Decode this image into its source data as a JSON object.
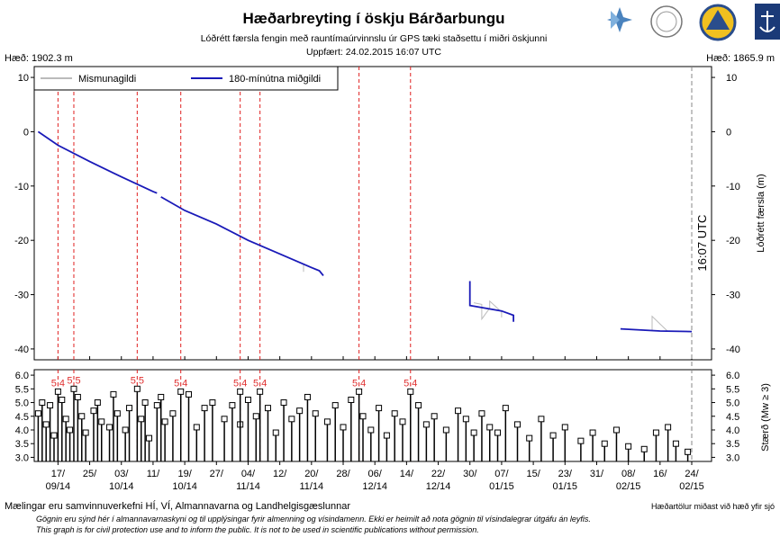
{
  "chart_data": {
    "type": "line",
    "title": "Hæðarbreyting í öskju Bárðarbungu",
    "subtitle": "Lóðrétt færsla fengin með rauntímaúrvinnslu úr GPS tæki staðsettu í miðri öskjunni",
    "updated": "Uppfært: 24.02.2015 16:07 UTC",
    "height_left": "Hæð: 1902.3 m",
    "height_right": "Hæð: 1865.9 m",
    "ylabel": "Lóðrétt færsla (m)",
    "now_label": "16:07 UTC",
    "now": "2015-02-24",
    "xlim": [
      "2014-09-11",
      "2015-03-01"
    ],
    "xticks": [
      {
        "value": "2014-09-17",
        "label": "17/\n09/14"
      },
      {
        "value": "2014-09-25",
        "label": "25/"
      },
      {
        "value": "2014-10-03",
        "label": "03/\n10/14"
      },
      {
        "value": "2014-10-11",
        "label": "11/"
      },
      {
        "value": "2014-10-19",
        "label": "19/\n10/14"
      },
      {
        "value": "2014-10-27",
        "label": "27/"
      },
      {
        "value": "2014-11-04",
        "label": "04/\n11/14"
      },
      {
        "value": "2014-11-12",
        "label": "12/"
      },
      {
        "value": "2014-11-20",
        "label": "20/\n11/14"
      },
      {
        "value": "2014-11-28",
        "label": "28/"
      },
      {
        "value": "2014-12-06",
        "label": "06/\n12/14"
      },
      {
        "value": "2014-12-14",
        "label": "14/"
      },
      {
        "value": "2014-12-22",
        "label": "22/\n12/14"
      },
      {
        "value": "2014-12-30",
        "label": "30/"
      },
      {
        "value": "2015-01-07",
        "label": "07/\n01/15"
      },
      {
        "value": "2015-01-15",
        "label": "15/"
      },
      {
        "value": "2015-01-23",
        "label": "23/\n01/15"
      },
      {
        "value": "2015-01-31",
        "label": "31/"
      },
      {
        "value": "2015-02-08",
        "label": "08/\n02/15"
      },
      {
        "value": "2015-02-16",
        "label": "16/"
      },
      {
        "value": "2015-02-24",
        "label": "24/\n02/15"
      }
    ],
    "ylim": [
      -42,
      12
    ],
    "yticks": [
      10,
      0,
      -10,
      -20,
      -30,
      -40
    ],
    "series": [
      {
        "name": "Mismunagildi",
        "color": "#bbbbbb",
        "x": [
          "2014-11-18",
          "2014-11-18",
          null,
          "2014-12-31",
          "2015-01-02",
          "2015-01-02",
          "2015-01-04",
          "2015-01-04",
          "2015-01-07",
          "2015-01-07",
          null,
          "2015-02-12",
          "2015-02-14",
          "2015-02-14",
          "2015-02-18"
        ],
        "values": [
          -24.4,
          -25.8,
          null,
          -31.5,
          -31.8,
          -34.5,
          -32.5,
          -31.2,
          -33.2,
          -34.2,
          null,
          -36.6,
          -36.6,
          -34.0,
          -36.8
        ]
      },
      {
        "name": "180-mínútna miðgildi",
        "color": "#1a1ab8",
        "x": [
          "2014-09-12",
          "2014-09-17",
          "2014-09-25",
          "2014-10-03",
          "2014-10-11",
          "2014-10-12",
          null,
          "2014-10-13",
          "2014-10-19",
          "2014-10-27",
          "2014-11-04",
          "2014-11-12",
          "2014-11-20",
          "2014-11-22",
          "2014-11-23",
          null,
          "2014-12-30",
          "2014-12-30",
          "2015-01-07",
          "2015-01-10",
          "2015-01-10",
          null,
          "2015-02-06",
          "2015-02-16",
          "2015-02-24"
        ],
        "values": [
          0,
          -2.5,
          -5.5,
          -8.3,
          -11,
          -11.3,
          null,
          -12,
          -14.5,
          -17,
          -20,
          -22.5,
          -25,
          -25.6,
          -26.5,
          null,
          -27.5,
          -32,
          -33,
          -33.8,
          -35,
          null,
          -36.3,
          -36.7,
          -36.8
        ]
      }
    ],
    "legend": "upper left",
    "events": [
      {
        "date": "2014-09-17",
        "magnitude": 5.4
      },
      {
        "date": "2014-09-21",
        "magnitude": 5.5
      },
      {
        "date": "2014-10-07",
        "magnitude": 5.5
      },
      {
        "date": "2014-10-18",
        "magnitude": 5.4
      },
      {
        "date": "2014-11-02",
        "magnitude": 5.4
      },
      {
        "date": "2014-11-07",
        "magnitude": 5.4
      },
      {
        "date": "2014-12-02",
        "magnitude": 5.4
      },
      {
        "date": "2014-12-15",
        "magnitude": 5.4
      }
    ],
    "quakes": {
      "ylabel": "Stærð (Mw ≥ 3)",
      "ylim": [
        2.85,
        6.2
      ],
      "yticks": [
        {
          "value": 6,
          "label": "6.0"
        },
        {
          "value": 5.5,
          "label": "5.5"
        },
        {
          "value": 5,
          "label": "5.0"
        },
        {
          "value": 4.5,
          "label": "4.5"
        },
        {
          "value": 4,
          "label": "4.0"
        },
        {
          "value": 3.5,
          "label": "3.5"
        },
        {
          "value": 3,
          "label": "3.0"
        }
      ],
      "dates": [
        "2014-09-12",
        "2014-09-13",
        "2014-09-14",
        "2014-09-15",
        "2014-09-16",
        "2014-09-18",
        "2014-09-19",
        "2014-09-20",
        "2014-09-22",
        "2014-09-23",
        "2014-09-24",
        "2014-09-26",
        "2014-09-27",
        "2014-09-28",
        "2014-09-30",
        "2014-10-01",
        "2014-10-02",
        "2014-10-04",
        "2014-10-05",
        "2014-10-08",
        "2014-10-09",
        "2014-10-10",
        "2014-10-12",
        "2014-10-13",
        "2014-10-14",
        "2014-10-16",
        "2014-10-20",
        "2014-10-22",
        "2014-10-24",
        "2014-10-26",
        "2014-10-29",
        "2014-10-31",
        "2014-11-02",
        "2014-11-04",
        "2014-11-06",
        "2014-11-09",
        "2014-11-11",
        "2014-11-13",
        "2014-11-15",
        "2014-11-17",
        "2014-11-19",
        "2014-11-21",
        "2014-11-24",
        "2014-11-26",
        "2014-11-28",
        "2014-11-30",
        "2014-12-03",
        "2014-12-05",
        "2014-12-07",
        "2014-12-09",
        "2014-12-11",
        "2014-12-13",
        "2014-12-17",
        "2014-12-19",
        "2014-12-21",
        "2014-12-24",
        "2014-12-27",
        "2014-12-29",
        "2014-12-31",
        "2015-01-02",
        "2015-01-04",
        "2015-01-06",
        "2015-01-08",
        "2015-01-11",
        "2015-01-14",
        "2015-01-17",
        "2015-01-20",
        "2015-01-23",
        "2015-01-27",
        "2015-01-30",
        "2015-02-02",
        "2015-02-05",
        "2015-02-08",
        "2015-02-12",
        "2015-02-15",
        "2015-02-18",
        "2015-02-20",
        "2015-02-23"
      ],
      "magnitudes": [
        4.6,
        5.0,
        4.2,
        4.9,
        3.8,
        5.1,
        4.4,
        4.0,
        5.2,
        4.5,
        3.9,
        4.7,
        5.0,
        4.3,
        4.1,
        5.3,
        4.6,
        4.0,
        4.8,
        4.4,
        5.0,
        3.7,
        4.9,
        5.2,
        4.3,
        4.6,
        5.3,
        4.1,
        4.8,
        5.0,
        4.4,
        4.9,
        4.2,
        5.1,
        4.5,
        4.8,
        3.9,
        5.0,
        4.4,
        4.7,
        5.2,
        4.6,
        4.3,
        4.9,
        4.1,
        5.1,
        4.5,
        4.0,
        4.8,
        3.8,
        4.6,
        4.3,
        4.9,
        4.2,
        4.5,
        4.0,
        4.7,
        4.4,
        3.9,
        4.6,
        4.1,
        3.9,
        4.8,
        4.2,
        3.7,
        4.4,
        3.8,
        4.1,
        3.6,
        3.9,
        3.5,
        4.0,
        3.4,
        3.3,
        3.9,
        4.1,
        3.5,
        3.2
      ]
    },
    "footer_left": "Mælingar eru samvinnuverkefni HÍ, VÍ, Almannavarna og Landhelgisgæslunnar",
    "footer_right": "Hæðartölur miðast við hæð yfir sjó",
    "note_is": "Gögnin eru sýnd hér í almannavarnaskyni og til upplýsingar fyrir almenning og vísindamenn. Ekki er heimilt að nota gögnin til vísindalegrar útgáfu án leyfis.",
    "note_en": "This graph is for civil protection use and to inform the public. It is not to be used in scientific publications without permission."
  }
}
